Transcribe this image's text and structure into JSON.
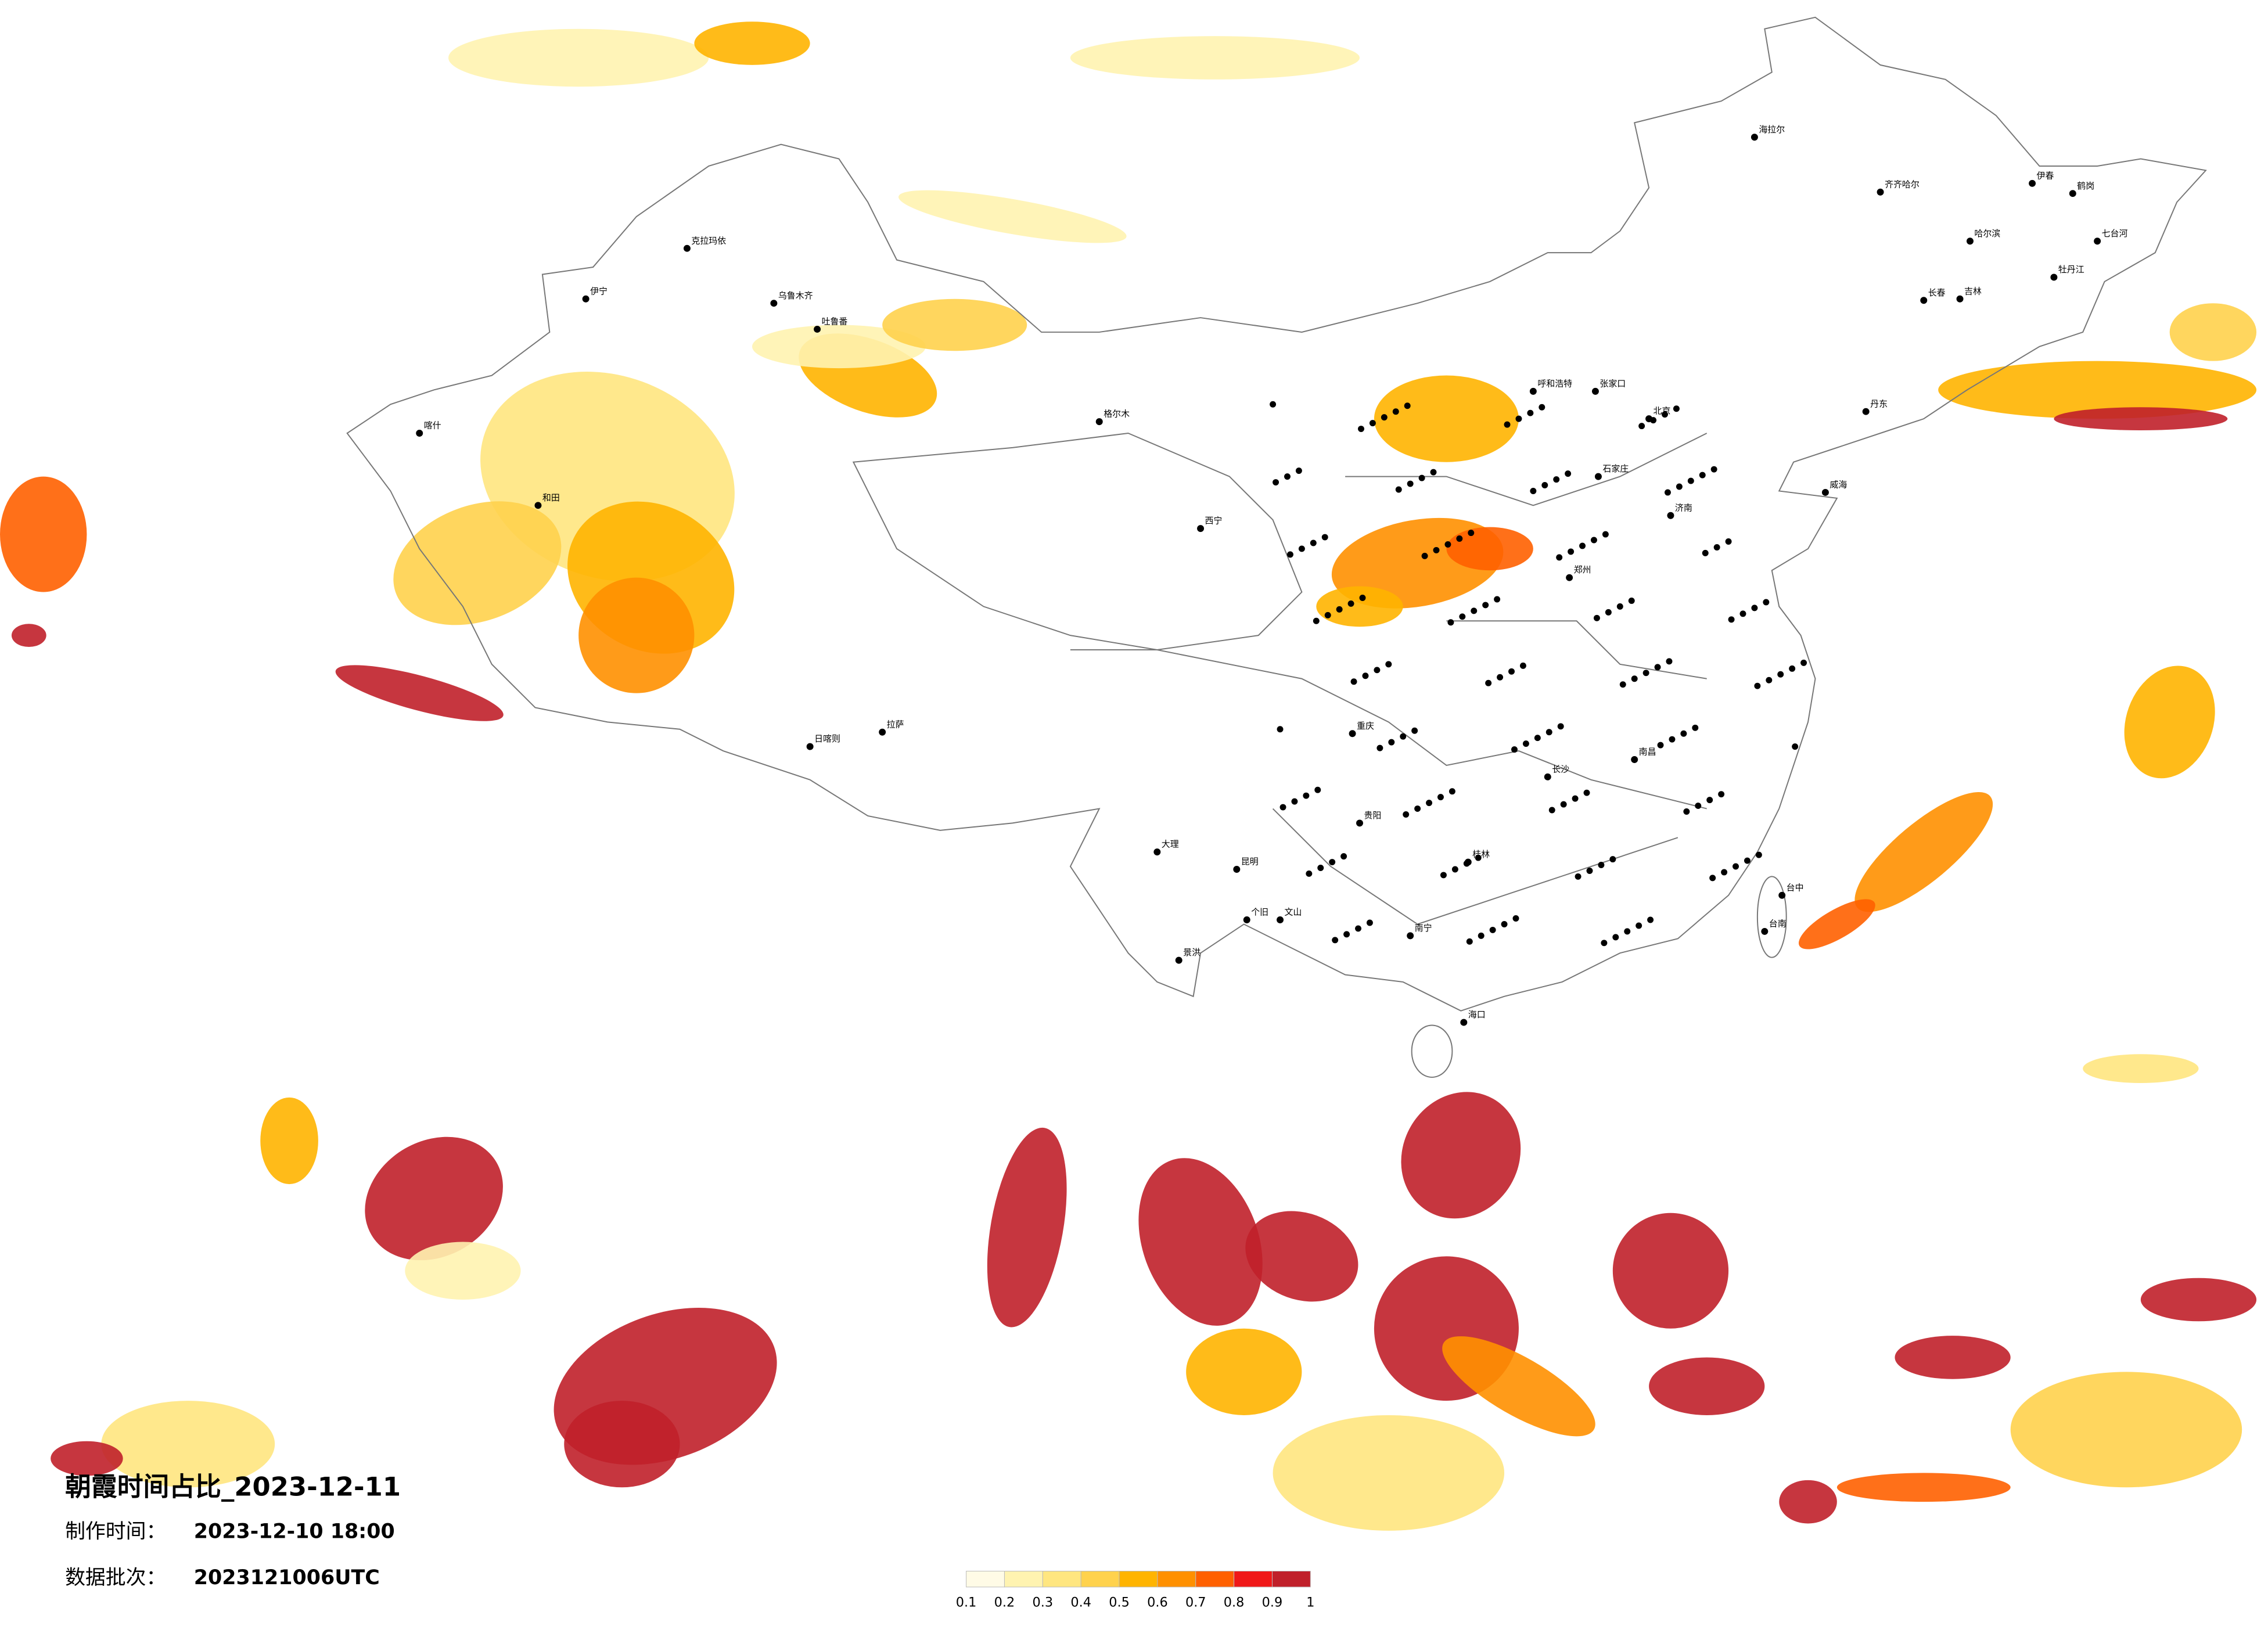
{
  "title": "朝霞时间占比_2023-12-11",
  "made_time_label": "制作时间：",
  "made_time": "2023-12-10 18:00",
  "batch_label": "数据批次：",
  "batch": "2023121006UTC",
  "legend": {
    "colors": [
      "#fffbe6",
      "#fff3b0",
      "#ffe680",
      "#ffd24d",
      "#ffb400",
      "#ff9000",
      "#ff6000",
      "#f01818",
      "#c0202a"
    ],
    "ticks": [
      0.1,
      0.2,
      0.3,
      0.4,
      0.5,
      0.6,
      0.7,
      0.8,
      0.9,
      1
    ]
  },
  "cities": [
    "克拉玛依",
    "伊宁",
    "乌鲁木齐",
    "吐鲁番",
    "喀什",
    "和田",
    "日喀则",
    "拉萨",
    "格尔木",
    "西宁",
    "呼和浩特",
    "北京",
    "哈尔滨",
    "齐齐哈尔",
    "海拉尔",
    "长春",
    "张家口",
    "石家庄",
    "郑州",
    "南昌",
    "长沙",
    "贵阳",
    "昆明",
    "大理",
    "南宁",
    "海口",
    "台中",
    "台南",
    "伊春",
    "鹤岗",
    "七台河",
    "牡丹江",
    "吉林",
    "丹东",
    "威海",
    "济南",
    "重庆",
    "桂林",
    "个旧",
    "文山",
    "景洪"
  ]
}
